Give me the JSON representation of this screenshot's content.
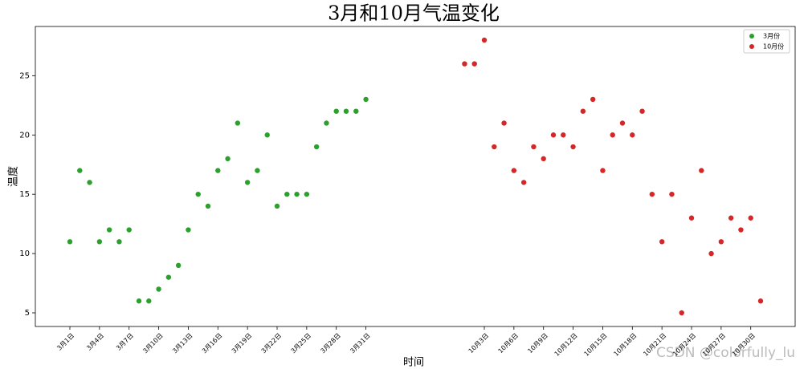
{
  "chart_data": {
    "type": "scatter",
    "title": "3月和10月气温变化",
    "x_label": "时间",
    "y_label": "温度",
    "watermark": "CSDN @colorfully_lu",
    "xlim": [
      -3.5,
      73.5
    ],
    "ylim": [
      3.85,
      29.15
    ],
    "yticks": [
      5,
      10,
      15,
      20,
      25
    ],
    "xticks": [
      {
        "value": 0,
        "label": "3月1日"
      },
      {
        "value": 3,
        "label": "3月4日"
      },
      {
        "value": 6,
        "label": "3月7日"
      },
      {
        "value": 9,
        "label": "3月10日"
      },
      {
        "value": 12,
        "label": "3月13日"
      },
      {
        "value": 15,
        "label": "3月16日"
      },
      {
        "value": 18,
        "label": "3月19日"
      },
      {
        "value": 21,
        "label": "3月22日"
      },
      {
        "value": 24,
        "label": "3月25日"
      },
      {
        "value": 27,
        "label": "3月28日"
      },
      {
        "value": 30,
        "label": "3月31日"
      },
      {
        "value": 42,
        "label": "10月3日"
      },
      {
        "value": 45,
        "label": "10月6日"
      },
      {
        "value": 48,
        "label": "10月9日"
      },
      {
        "value": 51,
        "label": "10月12日"
      },
      {
        "value": 54,
        "label": "10月15日"
      },
      {
        "value": 57,
        "label": "10月18日"
      },
      {
        "value": 60,
        "label": "10月21日"
      },
      {
        "value": 63,
        "label": "10月24日"
      },
      {
        "value": 66,
        "label": "10月27日"
      },
      {
        "value": 69,
        "label": "10月30日"
      }
    ],
    "legend": "upper right",
    "series": [
      {
        "name": "3月份",
        "color": "#2ca02c",
        "x": [
          0,
          1,
          2,
          3,
          4,
          5,
          6,
          7,
          8,
          9,
          10,
          11,
          12,
          13,
          14,
          15,
          16,
          17,
          18,
          19,
          20,
          21,
          22,
          23,
          24,
          25,
          26,
          27,
          28,
          29,
          30
        ],
        "values": [
          11,
          17,
          16,
          11,
          12,
          11,
          12,
          6,
          6,
          7,
          8,
          9,
          12,
          15,
          14,
          17,
          18,
          21,
          16,
          17,
          20,
          14,
          15,
          15,
          15,
          19,
          21,
          22,
          22,
          22,
          23
        ]
      },
      {
        "name": "10月份",
        "color": "#d62728",
        "x": [
          40,
          41,
          42,
          43,
          44,
          45,
          46,
          47,
          48,
          49,
          50,
          51,
          52,
          53,
          54,
          55,
          56,
          57,
          58,
          59,
          60,
          61,
          62,
          63,
          64,
          65,
          66,
          67,
          68,
          69,
          70
        ],
        "values": [
          26,
          26,
          28,
          19,
          21,
          17,
          16,
          19,
          18,
          20,
          20,
          19,
          22,
          23,
          17,
          20,
          21,
          20,
          22,
          15,
          11,
          15,
          5,
          13,
          17,
          10,
          11,
          13,
          12,
          13,
          6
        ]
      }
    ]
  }
}
